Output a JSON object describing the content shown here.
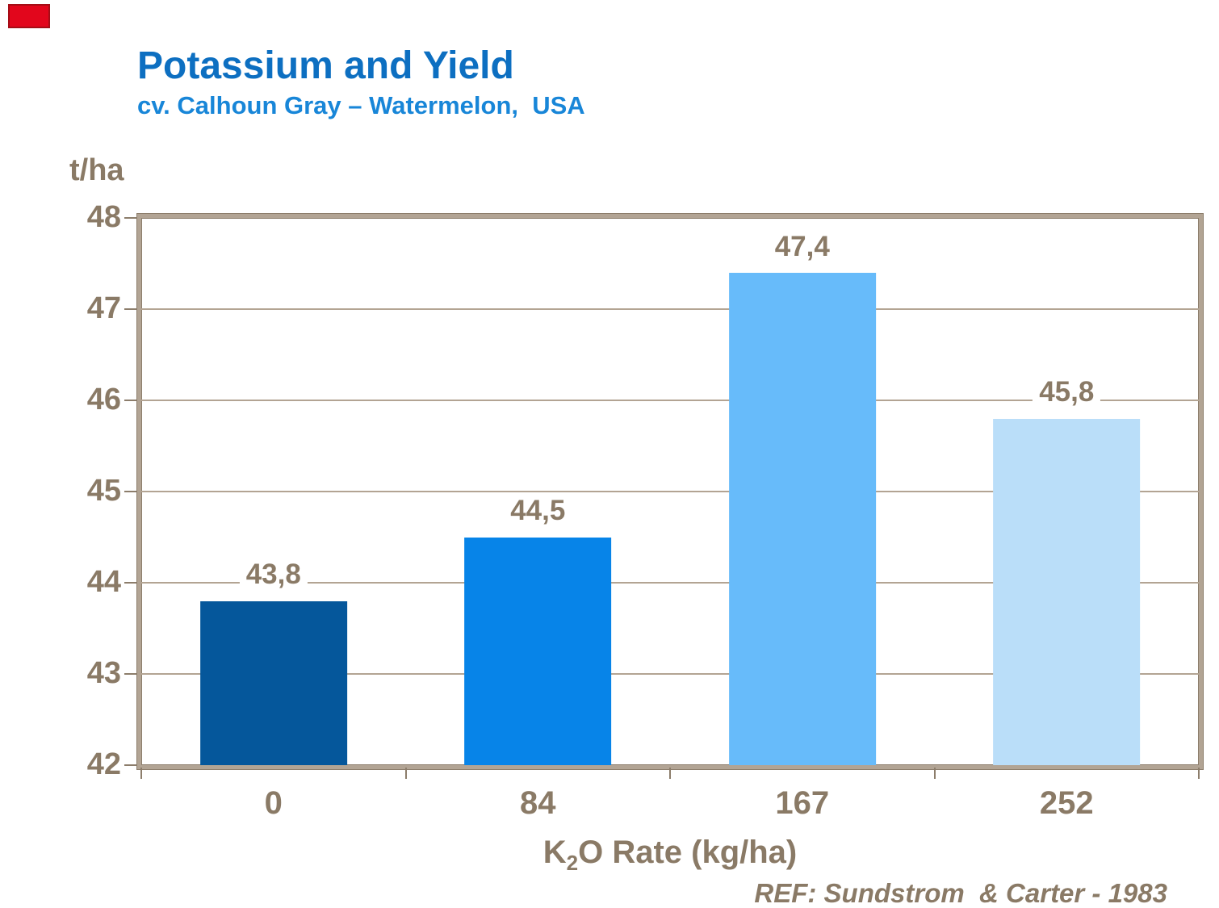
{
  "slide": {
    "title": "Potassium and Yield",
    "subtitle": "cv. Calhoun Gray – Watermelon,  USA",
    "reference": "REF: Sundstrom  & Carter - 1983"
  },
  "colors": {
    "title": "#0d6fc1",
    "subtitle": "#1886d8",
    "axis_text": "#8a7a66",
    "gridline": "#b3a493",
    "frame": "#b2a494",
    "frame_edge": "#8c7d6b",
    "corner_mark": "#e2061c"
  },
  "chart_data": {
    "type": "bar",
    "categories": [
      "0",
      "84",
      "167",
      "252"
    ],
    "values": [
      43.8,
      44.5,
      47.4,
      45.8
    ],
    "value_labels": [
      "43,8",
      "44,5",
      "47,4",
      "45,8"
    ],
    "bar_colors": [
      "#05579b",
      "#0784e8",
      "#67bbfa",
      "#badef9"
    ],
    "title": "Potassium and Yield",
    "subtitle": "cv. Calhoun Gray – Watermelon, USA",
    "ylabel": "t/ha",
    "xlabel": {
      "pre": "K",
      "sub": "2",
      "post": "O Rate (kg/ha)"
    },
    "ylim": [
      42,
      48
    ],
    "yticks": [
      42,
      43,
      44,
      45,
      46,
      47,
      48
    ],
    "bar_width_fraction": 0.555,
    "grid": true,
    "legend": false,
    "reference": "REF: Sundstrom & Carter - 1983"
  }
}
